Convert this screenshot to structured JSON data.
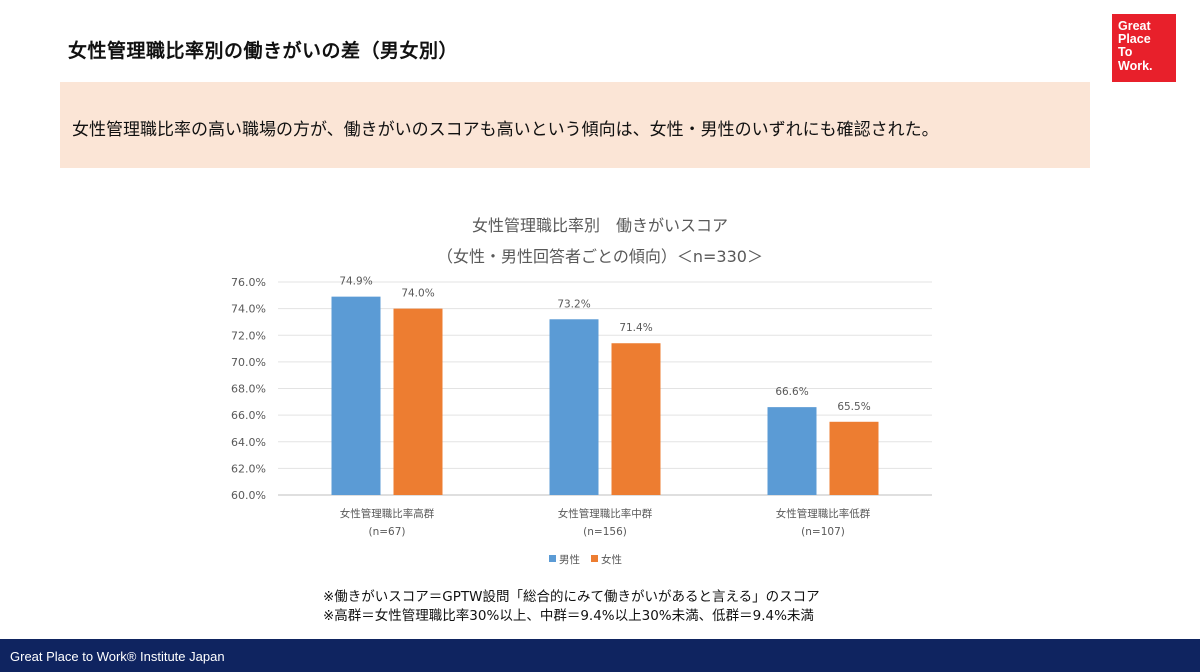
{
  "slide": {
    "title": "女性管理職比率別の働きがいの差（男女別）",
    "summary": "女性管理職比率の高い職場の方が、働きがいのスコアも高いという傾向は、女性・男性のいずれにも確認された。",
    "notes": [
      "※働きがいスコア＝GPTW設問「総合的にみて働きがいがあると言える」のスコア",
      "※高群＝女性管理職比率30%以上、中群＝9.4%以上30%未満、低群＝9.4%未満"
    ],
    "footer": "Great Place to Work® Institute Japan"
  },
  "logo": {
    "lines": [
      "Great",
      "Place",
      "To",
      "Work."
    ]
  },
  "colors": {
    "male": "#5b9bd5",
    "female": "#ed7d31",
    "summary_bg": "#fbe5d6",
    "footer_bg": "#0f2460",
    "logo_bg": "#e8202b"
  },
  "chart_data": {
    "type": "bar",
    "title": "女性管理職比率別　働きがいスコア",
    "subtitle": "（女性・男性回答者ごとの傾向）＜n=330＞",
    "categories": [
      "女性管理職比率高群",
      "女性管理職比率中群",
      "女性管理職比率低群"
    ],
    "category_sublabels": [
      "(n=67)",
      "(n=156)",
      "(n=107)"
    ],
    "series": [
      {
        "name": "男性",
        "values": [
          74.9,
          73.2,
          66.6
        ],
        "labels": [
          "74.9%",
          "73.2%",
          "66.6%"
        ],
        "color": "#5b9bd5"
      },
      {
        "name": "女性",
        "values": [
          74.0,
          71.4,
          65.5
        ],
        "labels": [
          "74.0%",
          "71.4%",
          "65.5%"
        ],
        "color": "#ed7d31"
      }
    ],
    "ylim": [
      60,
      76
    ],
    "yticks": [
      60,
      62,
      64,
      66,
      68,
      70,
      72,
      74,
      76
    ],
    "ytick_labels": [
      "60.0%",
      "62.0%",
      "64.0%",
      "66.0%",
      "68.0%",
      "70.0%",
      "72.0%",
      "74.0%",
      "76.0%"
    ],
    "grid": true,
    "legend_position": "bottom"
  }
}
